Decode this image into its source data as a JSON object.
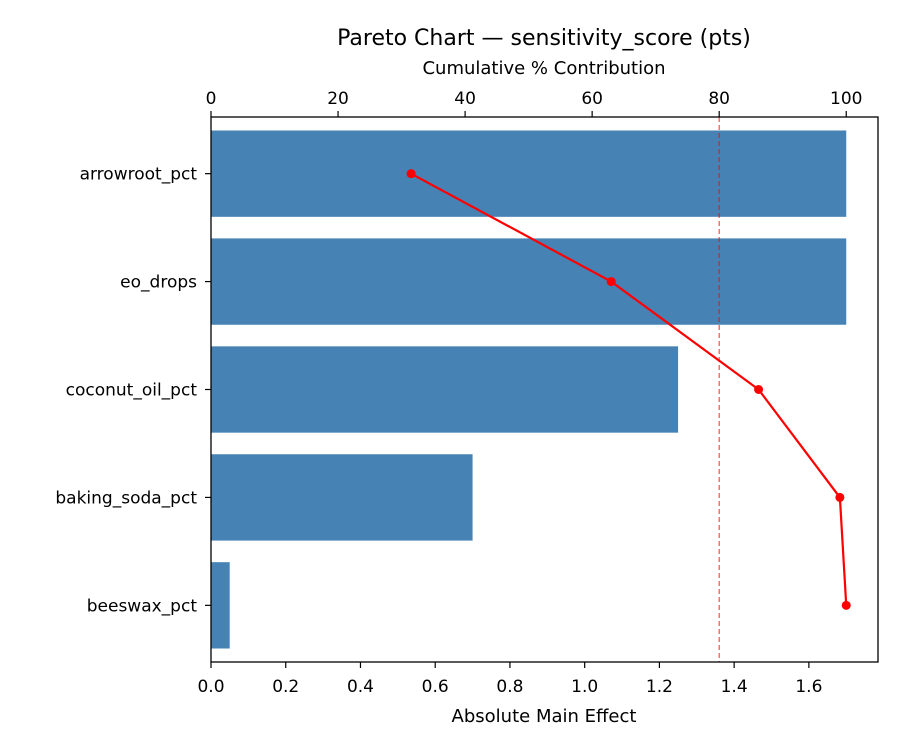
{
  "chart_data": {
    "type": "bar",
    "orientation": "horizontal",
    "title": "Pareto Chart — sensitivity_score (pts)",
    "xlabel": "Absolute Main Effect",
    "x2label": "Cumulative % Contribution",
    "ylabel": "",
    "categories": [
      "arrowroot_pct",
      "eo_drops",
      "coconut_oil_pct",
      "baking_soda_pct",
      "beeswax_pct"
    ],
    "values": [
      1.7,
      1.7,
      1.25,
      0.7,
      0.05
    ],
    "cumulative_pct": [
      31.5,
      63.0,
      86.2,
      99.0,
      100.0
    ],
    "xlim": [
      0,
      1.785
    ],
    "x2lim": [
      0,
      105
    ],
    "x_ticks": [
      0.0,
      0.2,
      0.4,
      0.6,
      0.8,
      1.0,
      1.2,
      1.4,
      1.6
    ],
    "x_tick_labels": [
      "0.0",
      "0.2",
      "0.4",
      "0.6",
      "0.8",
      "1.0",
      "1.2",
      "1.4",
      "1.6"
    ],
    "x2_ticks": [
      0,
      20,
      40,
      60,
      80,
      100
    ],
    "x2_tick_labels": [
      "0",
      "20",
      "40",
      "60",
      "80",
      "100"
    ],
    "threshold_pct": 80,
    "bar_color": "#4682b4",
    "line_color": "#ff0000",
    "threshold_color": "#ff0000",
    "grid": false
  }
}
